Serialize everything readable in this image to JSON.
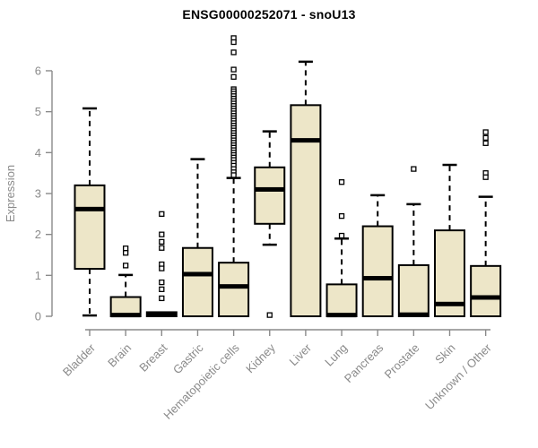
{
  "title": "ENSG00000252071 - snoU13",
  "colors": {
    "background": "#ffffff",
    "box_fill": "#ede6c8",
    "box_stroke": "#000000",
    "median": "#000000",
    "whisker": "#000000",
    "outlier_stroke": "#000000",
    "axis": "#8a8a8a",
    "tick_label": "#8a8a8a",
    "title": "#000000"
  },
  "chart_data": {
    "type": "boxplot",
    "title": "ENSG00000252071 - snoU13",
    "xlabel": "",
    "ylabel": "Expression",
    "ylim": [
      0,
      6.9
    ],
    "yticks": [
      0,
      1,
      2,
      3,
      4,
      5,
      6
    ],
    "grid": false,
    "legend": false,
    "categories": [
      "Bladder",
      "Brain",
      "Breast",
      "Gastric",
      "Hematopoietic cells",
      "Kidney",
      "Liver",
      "Lung",
      "Pancreas",
      "Prostate",
      "Skin",
      "Unknown / Other"
    ],
    "series": [
      {
        "category": "Bladder",
        "whisker_low": 0.02,
        "q1": 1.16,
        "median": 2.62,
        "q3": 3.2,
        "whisker_high": 5.08,
        "outliers": []
      },
      {
        "category": "Brain",
        "whisker_low": null,
        "q1": 0,
        "median": 0.03,
        "q3": 0.47,
        "whisker_high": 1.01,
        "outliers": [
          1.66,
          1.55,
          1.24
        ]
      },
      {
        "category": "Breast",
        "whisker_low": null,
        "q1": 0,
        "median": 0.04,
        "q3": 0.1,
        "whisker_high": null,
        "outliers": [
          2.5,
          2.0,
          1.82,
          1.67,
          1.27,
          1.17,
          0.83,
          0.66,
          0.44
        ]
      },
      {
        "category": "Gastric",
        "whisker_low": null,
        "q1": 0,
        "median": 1.03,
        "q3": 1.67,
        "whisker_high": 3.84,
        "outliers": []
      },
      {
        "category": "Hematopoietic cells",
        "whisker_low": null,
        "q1": 0,
        "median": 0.73,
        "q3": 1.31,
        "whisker_high": 3.38,
        "outliers": [
          6.8,
          6.7,
          6.45,
          6.03,
          5.85,
          5.55,
          5.5,
          5.44,
          5.38,
          5.32,
          5.26,
          5.2,
          5.14,
          5.08,
          5.02,
          4.96,
          4.9,
          4.84,
          4.78,
          4.72,
          4.66,
          4.6,
          4.54,
          4.48,
          4.42,
          4.36,
          4.3,
          4.24,
          4.18,
          4.12,
          4.06,
          4.0,
          3.94,
          3.88,
          3.82,
          3.75,
          3.68,
          3.6,
          3.52,
          3.45
        ]
      },
      {
        "category": "Kidney",
        "whisker_low": 1.75,
        "q1": 2.26,
        "median": 3.1,
        "q3": 3.64,
        "whisker_high": 4.52,
        "outliers": [
          0.03
        ]
      },
      {
        "category": "Liver",
        "whisker_low": null,
        "q1": 0,
        "median": 4.3,
        "q3": 5.16,
        "whisker_high": 6.22,
        "outliers": []
      },
      {
        "category": "Lung",
        "whisker_low": null,
        "q1": 0,
        "median": 0.03,
        "q3": 0.78,
        "whisker_high": 1.9,
        "outliers": [
          3.28,
          2.45,
          1.97
        ]
      },
      {
        "category": "Pancreas",
        "whisker_low": null,
        "q1": 0,
        "median": 0.93,
        "q3": 2.2,
        "whisker_high": 2.96,
        "outliers": []
      },
      {
        "category": "Prostate",
        "whisker_low": null,
        "q1": 0,
        "median": 0.04,
        "q3": 1.25,
        "whisker_high": 2.74,
        "outliers": [
          3.6
        ]
      },
      {
        "category": "Skin",
        "whisker_low": null,
        "q1": 0,
        "median": 0.3,
        "q3": 2.1,
        "whisker_high": 3.7,
        "outliers": []
      },
      {
        "category": "Unknown / Other",
        "whisker_low": null,
        "q1": 0,
        "median": 0.46,
        "q3": 1.23,
        "whisker_high": 2.92,
        "outliers": [
          4.5,
          4.36,
          4.23,
          3.5,
          3.4
        ]
      }
    ]
  }
}
